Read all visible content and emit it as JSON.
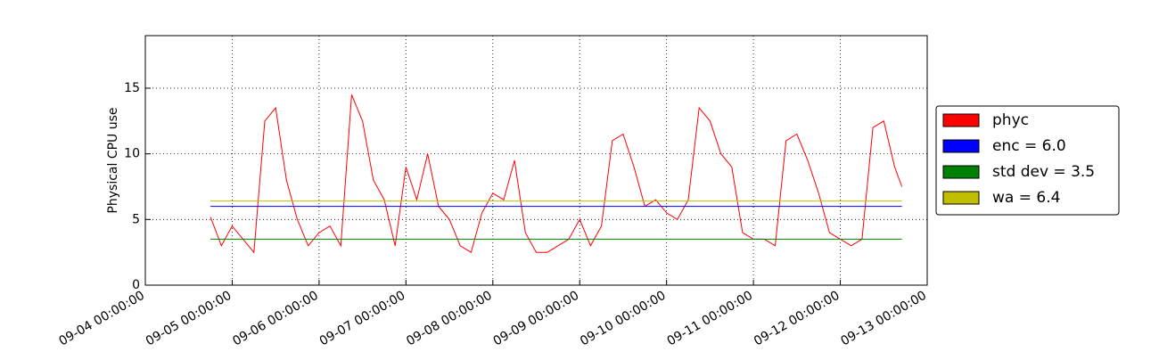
{
  "chart_data": {
    "type": "line",
    "ylabel": "Physical CPU use",
    "x": [
      "09-04 18:00:00",
      "09-04 21:00:00",
      "09-05 00:00:00",
      "09-05 03:00:00",
      "09-05 06:00:00",
      "09-05 09:00:00",
      "09-05 12:00:00",
      "09-05 15:00:00",
      "09-05 18:00:00",
      "09-05 21:00:00",
      "09-06 00:00:00",
      "09-06 03:00:00",
      "09-06 06:00:00",
      "09-06 09:00:00",
      "09-06 12:00:00",
      "09-06 15:00:00",
      "09-06 18:00:00",
      "09-06 21:00:00",
      "09-07 00:00:00",
      "09-07 03:00:00",
      "09-07 06:00:00",
      "09-07 09:00:00",
      "09-07 12:00:00",
      "09-07 15:00:00",
      "09-07 18:00:00",
      "09-07 21:00:00",
      "09-08 00:00:00",
      "09-08 03:00:00",
      "09-08 06:00:00",
      "09-08 09:00:00",
      "09-08 12:00:00",
      "09-08 15:00:00",
      "09-08 18:00:00",
      "09-08 21:00:00",
      "09-09 00:00:00",
      "09-09 03:00:00",
      "09-09 06:00:00",
      "09-09 09:00:00",
      "09-09 12:00:00",
      "09-09 15:00:00",
      "09-09 18:00:00",
      "09-09 21:00:00",
      "09-10 00:00:00",
      "09-10 03:00:00",
      "09-10 06:00:00",
      "09-10 09:00:00",
      "09-10 12:00:00",
      "09-10 15:00:00",
      "09-10 18:00:00",
      "09-10 21:00:00",
      "09-11 00:00:00",
      "09-11 03:00:00",
      "09-11 06:00:00",
      "09-11 09:00:00",
      "09-11 12:00:00",
      "09-11 15:00:00",
      "09-11 18:00:00",
      "09-11 21:00:00",
      "09-12 00:00:00",
      "09-12 03:00:00",
      "09-12 06:00:00",
      "09-12 09:00:00",
      "09-12 12:00:00",
      "09-12 15:00:00",
      "09-12 17:00:00"
    ],
    "series": [
      {
        "name": "phyc",
        "color": "#ff0000",
        "values": [
          5.2,
          3.0,
          4.5,
          3.5,
          2.5,
          12.5,
          13.5,
          8.0,
          5.0,
          3.0,
          4.0,
          4.5,
          3.0,
          14.5,
          12.5,
          8.0,
          6.5,
          3.0,
          9.0,
          6.5,
          10.0,
          6.0,
          5.0,
          3.0,
          2.5,
          5.5,
          7.0,
          6.5,
          9.5,
          4.0,
          2.5,
          2.5,
          3.0,
          3.5,
          5.0,
          3.0,
          4.5,
          11.0,
          11.5,
          9.0,
          6.0,
          6.5,
          5.5,
          5.0,
          6.5,
          13.5,
          12.5,
          10.0,
          9.0,
          4.0,
          3.5,
          3.5,
          3.0,
          11.0,
          11.5,
          9.5,
          7.0,
          4.0,
          3.5,
          3.0,
          3.5,
          12.0,
          12.5,
          9.0,
          7.5
        ]
      }
    ],
    "hlines": [
      {
        "name": "enc = 6.0",
        "color": "#0000ff",
        "value": 6.0
      },
      {
        "name": "std dev = 3.5",
        "color": "#008000",
        "value": 3.5
      },
      {
        "name": "wa = 6.4",
        "color": "#bfbf00",
        "value": 6.4
      }
    ],
    "xlim": [
      "09-04 00:00:00",
      "09-13 00:00:00"
    ],
    "xticks": [
      "09-04 00:00:00",
      "09-05 00:00:00",
      "09-06 00:00:00",
      "09-07 00:00:00",
      "09-08 00:00:00",
      "09-09 00:00:00",
      "09-10 00:00:00",
      "09-11 00:00:00",
      "09-12 00:00:00",
      "09-13 00:00:00"
    ],
    "ylim": [
      0,
      19
    ],
    "yticks": [
      0,
      5,
      10,
      15
    ],
    "grid": true,
    "legend": "right"
  }
}
